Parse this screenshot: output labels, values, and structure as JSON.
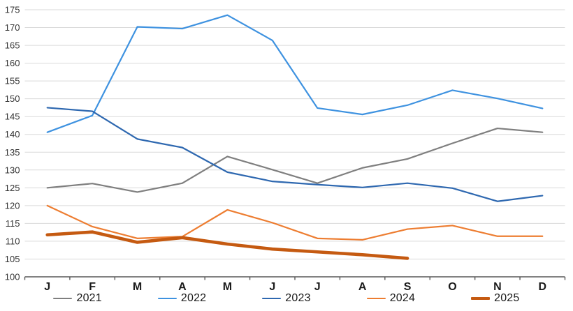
{
  "chart_data": {
    "type": "line",
    "title": "",
    "xlabel": "",
    "ylabel": "",
    "categories": [
      "J",
      "F",
      "M",
      "A",
      "M",
      "J",
      "J",
      "A",
      "S",
      "O",
      "N",
      "D"
    ],
    "series": [
      {
        "name": "2021",
        "color": "#7F7F7F",
        "width": 2.2,
        "values": [
          125.0,
          126.2,
          123.8,
          126.3,
          133.8,
          130.1,
          126.3,
          130.6,
          133.1,
          137.5,
          141.7,
          140.6
        ]
      },
      {
        "name": "2022",
        "color": "#3E92E0",
        "width": 2.2,
        "values": [
          140.6,
          145.3,
          170.2,
          169.7,
          173.5,
          166.4,
          147.4,
          145.6,
          148.2,
          152.4,
          150.1,
          147.3
        ]
      },
      {
        "name": "2023",
        "color": "#2E68B0",
        "width": 2.2,
        "values": [
          147.5,
          146.5,
          138.7,
          136.3,
          129.4,
          126.8,
          125.9,
          125.1,
          126.3,
          124.9,
          121.2,
          122.8
        ]
      },
      {
        "name": "2024",
        "color": "#ED7D31",
        "width": 2.2,
        "values": [
          120.0,
          114.1,
          110.8,
          111.3,
          118.8,
          115.2,
          110.8,
          110.4,
          113.4,
          114.4,
          111.4,
          111.4
        ]
      },
      {
        "name": "2025",
        "color": "#C55A11",
        "width": 4.6,
        "values": [
          111.8,
          112.6,
          109.7,
          111.0,
          109.2,
          107.8,
          107.0,
          106.2,
          105.2,
          null,
          null,
          null
        ]
      }
    ],
    "ylim": [
      100,
      175
    ],
    "ytick_step": 5,
    "grid": "horizontal",
    "legend_position": "bottom"
  },
  "style_colors": {
    "gridline": "#D9D9D9",
    "axis_line": "#595959",
    "y_tick_label": "#333333",
    "x_tick_label": "#1A1A1A"
  }
}
